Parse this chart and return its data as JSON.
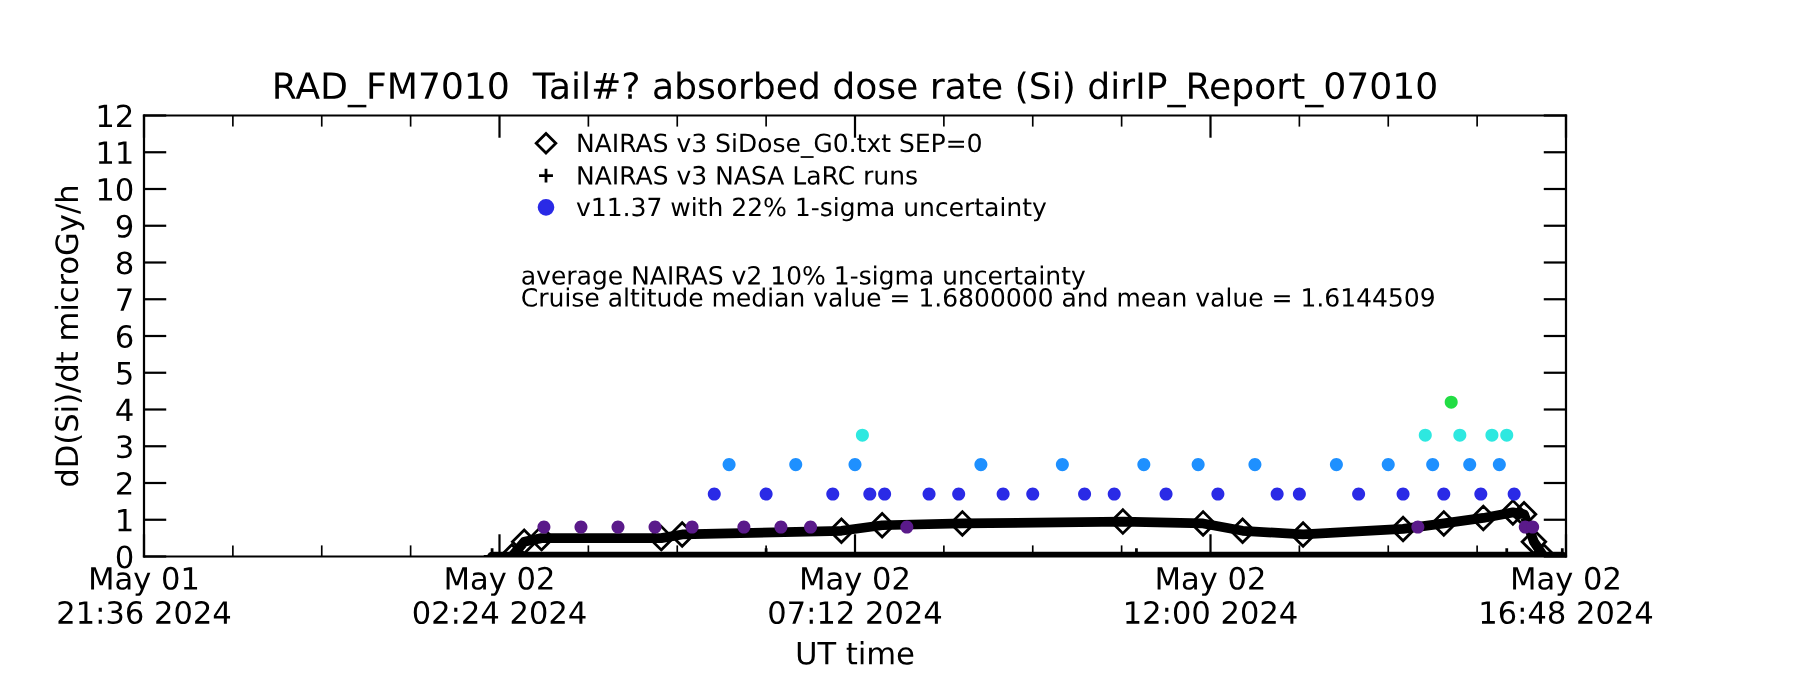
{
  "chart_data": {
    "type": "line",
    "title": "RAD_FM7010  Tail#? absorbed dose rate (Si) dirIP_Report_07010",
    "xlabel": "UT time",
    "ylabel": "dD(Si)/dt microGy/h",
    "xlim": [
      "2024-05-01T21:36",
      "2024-05-02T16:48"
    ],
    "xticks": [
      {
        "value": "2024-05-01T21:36",
        "label": "May 01\n21:36 2024"
      },
      {
        "value": "2024-05-02T02:24",
        "label": "May 02\n02:24 2024"
      },
      {
        "value": "2024-05-02T07:12",
        "label": "May 02\n07:12 2024"
      },
      {
        "value": "2024-05-02T12:00",
        "label": "May 02\n12:00 2024"
      },
      {
        "value": "2024-05-02T16:48",
        "label": "May 02\n16:48 2024"
      }
    ],
    "ylim": [
      0,
      12
    ],
    "yticks": [
      0,
      1,
      2,
      3,
      4,
      5,
      6,
      7,
      8,
      9,
      10,
      11,
      12
    ],
    "grid": false,
    "legend": "top",
    "series": [
      {
        "name": "NAIRAS v3 SiDose_G0.txt SEP=0",
        "marker": "diamond",
        "color": "#000000",
        "x": [
          "2024-05-02T02:34",
          "2024-05-02T02:44",
          "2024-05-02T02:58",
          "2024-05-02T04:35",
          "2024-05-02T04:52",
          "2024-05-02T07:01",
          "2024-05-02T07:34",
          "2024-05-02T08:39",
          "2024-05-02T10:49",
          "2024-05-02T11:54",
          "2024-05-02T12:26",
          "2024-05-02T13:15",
          "2024-05-02T14:36",
          "2024-05-02T15:09",
          "2024-05-02T15:41",
          "2024-05-02T16:05",
          "2024-05-02T16:14",
          "2024-05-02T16:22",
          "2024-05-02T16:30"
        ],
        "values": [
          0,
          0.4,
          0.5,
          0.5,
          0.6,
          0.7,
          0.85,
          0.9,
          0.95,
          0.9,
          0.7,
          0.6,
          0.75,
          0.9,
          1.05,
          1.2,
          1.15,
          0.4,
          0
        ]
      },
      {
        "name": "NAIRAS v3 NASA LaRC runs",
        "marker": "cross",
        "color": "#000000",
        "x": [
          "2024-05-02T02:18",
          "2024-05-02T06:00",
          "2024-05-02T11:00",
          "2024-05-02T16:00",
          "2024-05-02T16:45"
        ],
        "values": [
          0,
          0,
          0,
          0,
          0
        ]
      },
      {
        "name": "v11.37 with 22% 1-sigma uncertainty",
        "type": "scatter",
        "marker": "circle",
        "color": "#2a2ae6",
        "x": [
          "2024-05-02T03:00",
          "2024-05-02T03:30",
          "2024-05-02T04:00",
          "2024-05-02T04:30",
          "2024-05-02T05:00",
          "2024-05-02T05:18",
          "2024-05-02T05:30",
          "2024-05-02T05:42",
          "2024-05-02T06:00",
          "2024-05-02T06:12",
          "2024-05-02T06:24",
          "2024-05-02T06:36",
          "2024-05-02T06:54",
          "2024-05-02T07:12",
          "2024-05-02T07:18",
          "2024-05-02T07:24",
          "2024-05-02T07:36",
          "2024-05-02T07:54",
          "2024-05-02T08:12",
          "2024-05-02T08:36",
          "2024-05-02T08:54",
          "2024-05-02T09:12",
          "2024-05-02T09:36",
          "2024-05-02T10:00",
          "2024-05-02T10:18",
          "2024-05-02T10:42",
          "2024-05-02T11:06",
          "2024-05-02T11:24",
          "2024-05-02T11:50",
          "2024-05-02T12:06",
          "2024-05-02T12:36",
          "2024-05-02T12:54",
          "2024-05-02T13:12",
          "2024-05-02T13:42",
          "2024-05-02T14:00",
          "2024-05-02T14:24",
          "2024-05-02T14:36",
          "2024-05-02T14:48",
          "2024-05-02T14:54",
          "2024-05-02T15:00",
          "2024-05-02T15:09",
          "2024-05-02T15:15",
          "2024-05-02T15:22",
          "2024-05-02T15:30",
          "2024-05-02T15:39",
          "2024-05-02T15:48",
          "2024-05-02T15:54",
          "2024-05-02T16:00",
          "2024-05-02T16:06",
          "2024-05-02T16:15",
          "2024-05-02T16:21"
        ],
        "values": [
          0.8,
          0.8,
          0.8,
          0.8,
          0.8,
          1.7,
          2.5,
          0.8,
          1.7,
          0.8,
          2.5,
          0.8,
          1.7,
          2.5,
          3.3,
          1.7,
          1.7,
          0.8,
          1.7,
          1.7,
          2.5,
          1.7,
          1.7,
          2.5,
          1.7,
          1.7,
          2.5,
          1.7,
          2.5,
          1.7,
          2.5,
          1.7,
          1.7,
          2.5,
          1.7,
          2.5,
          1.7,
          0.8,
          3.3,
          2.5,
          1.7,
          4.2,
          3.3,
          2.5,
          1.7,
          3.3,
          2.5,
          3.3,
          1.7,
          0.8,
          0.8
        ],
        "colors": [
          "#5a1a8a",
          "#5a1a8a",
          "#5a1a8a",
          "#5a1a8a",
          "#5a1a8a",
          "#2a2ae6",
          "#1e90ff",
          "#5a1a8a",
          "#2a2ae6",
          "#5a1a8a",
          "#1e90ff",
          "#5a1a8a",
          "#2a2ae6",
          "#1e90ff",
          "#2ee8e0",
          "#2a2ae6",
          "#2a2ae6",
          "#5a1a8a",
          "#2a2ae6",
          "#2a2ae6",
          "#1e90ff",
          "#2a2ae6",
          "#2a2ae6",
          "#1e90ff",
          "#2a2ae6",
          "#2a2ae6",
          "#1e90ff",
          "#2a2ae6",
          "#1e90ff",
          "#2a2ae6",
          "#1e90ff",
          "#2a2ae6",
          "#2a2ae6",
          "#1e90ff",
          "#2a2ae6",
          "#1e90ff",
          "#2a2ae6",
          "#5a1a8a",
          "#2ee8e0",
          "#1e90ff",
          "#2a2ae6",
          "#22dd44",
          "#2ee8e0",
          "#1e90ff",
          "#2a2ae6",
          "#2ee8e0",
          "#1e90ff",
          "#2ee8e0",
          "#2a2ae6",
          "#5a1a8a",
          "#5a1a8a"
        ]
      }
    ],
    "annotations": [
      "average NAIRAS v2 10% 1-sigma uncertainty",
      "Cruise altitude median value = 1.6800000 and mean value = 1.6144509"
    ]
  }
}
